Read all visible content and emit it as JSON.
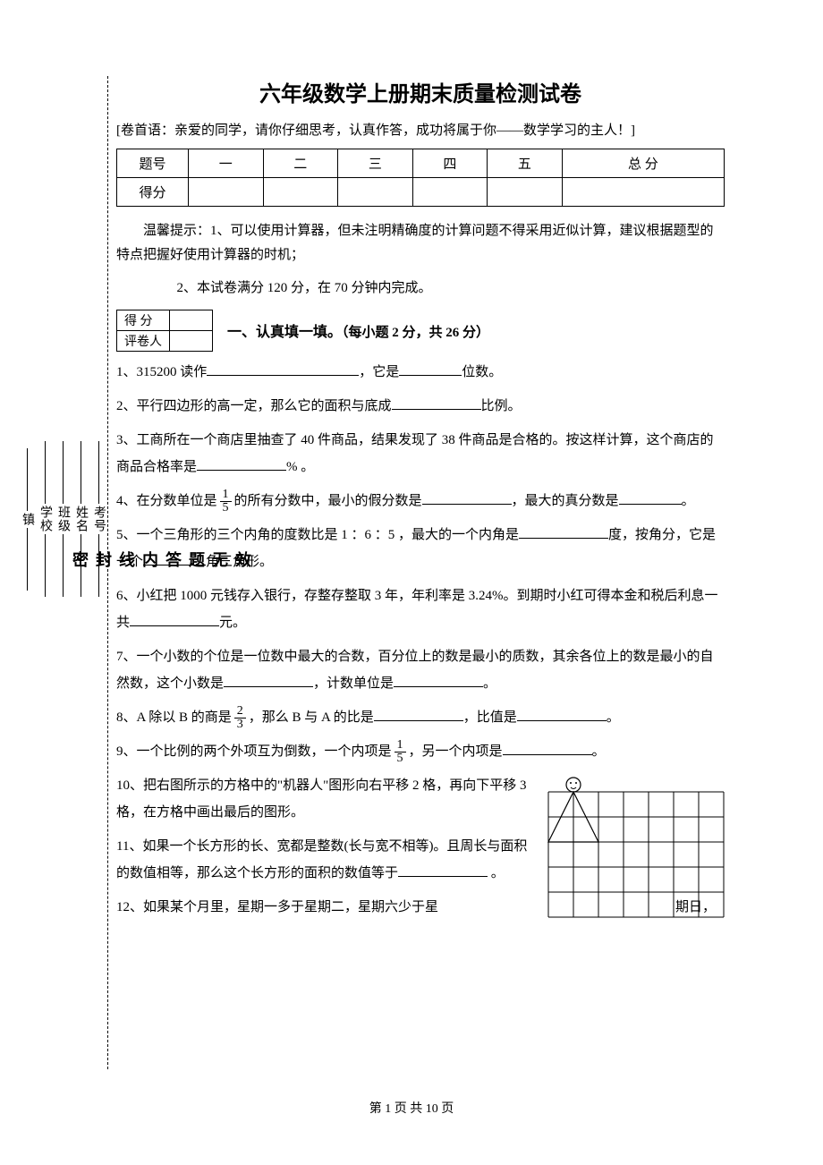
{
  "title": "六年级数学上册期末质量检测试卷",
  "preface": "[卷首语：亲爱的同学，请你仔细思考，认真作答，成功将属于你——数学学习的主人！]",
  "score_table": {
    "row1": [
      "题号",
      "一",
      "二",
      "三",
      "四",
      "五",
      "总 分"
    ],
    "row2_label": "得分"
  },
  "tips1": "温馨提示：1、可以使用计算器，但未注明精确度的计算问题不得采用近似计算，建议根据题型的特点把握好使用计算器的时机；",
  "tips2": "2、本试卷满分 120 分，在 70 分钟内完成。",
  "grader": {
    "score": "得 分",
    "person": "评卷人"
  },
  "section1": {
    "title": "一、认真填一填。",
    "sub": "（每小题 2 分，共 26 分）"
  },
  "q1_a": "1、315200 读作",
  "q1_b": "，它是",
  "q1_c": "位数。",
  "q2_a": "2、平行四边形的高一定，那么它的面积与底成",
  "q2_b": "比例。",
  "q3_a": "3、工商所在一个商店里抽查了 40 件商品，结果发现了 38 件商品是合格的。按这样计算，这个商店的商品合格率是",
  "q3_b": "% 。",
  "q4_a": "4、在分数单位是",
  "q4_b": "的所有分数中，最小的假分数是",
  "q4_c": "，最大的真分数是",
  "q4_d": "。",
  "q5_a": "5、一个三角形的三个内角的度数比是 1 ：6 ：5 ，最大的一个内角是",
  "q5_b": "度，按角分，它是一个",
  "q5_c": "角三角形。",
  "q6_a": "6、小红把 1000 元钱存入银行，存整存整取 3 年，年利率是 3.24%。到期时小红可得本金和税后利息一共",
  "q6_b": "元。",
  "q7_a": "7、一个小数的个位是一位数中最大的合数，百分位上的数是最小的质数，其余各位上的数是最小的自然数，这个小数是",
  "q7_b": "，计数单位是",
  "q7_c": "。",
  "q8_a": "8、A 除以 B 的商是",
  "q8_b": "，那么 B 与 A 的比是",
  "q8_c": "，比值是",
  "q8_d": "。",
  "q9_a": "9、一个比例的两个外项互为倒数，一个内项是",
  "q9_b": "，另一个内项是",
  "q9_c": "。",
  "q10": "10、把右图所示的方格中的\"机器人\"图形向右平移 2 格，再向下平移 3 格，在方格中画出最后的图形。",
  "q11_a": "11、如果一个长方形的长、宽都是整数(长与宽不相等)。且周长与面积的数值相等，那么这个长方形的面积的数值等于",
  "q11_b": " 。",
  "q12_a": "12、如果某个月里，星期一多于星期二，星期六少于星",
  "q12_b": "期日，",
  "side": {
    "fields": [
      "考号",
      "姓名",
      "班级",
      "学校",
      "镇"
    ],
    "seal": [
      "效",
      "无",
      "题",
      "答",
      "内",
      "线",
      "封",
      "密"
    ]
  },
  "fractions": {
    "one_fifth": {
      "num": "1",
      "den": "5"
    },
    "two_thirds": {
      "num": "2",
      "den": "3"
    }
  },
  "footer": "第 1 页 共 10 页",
  "grid": {
    "cols": 7,
    "rows": 5,
    "cell": 28,
    "stroke": "#000000",
    "stroke_width": 1
  }
}
